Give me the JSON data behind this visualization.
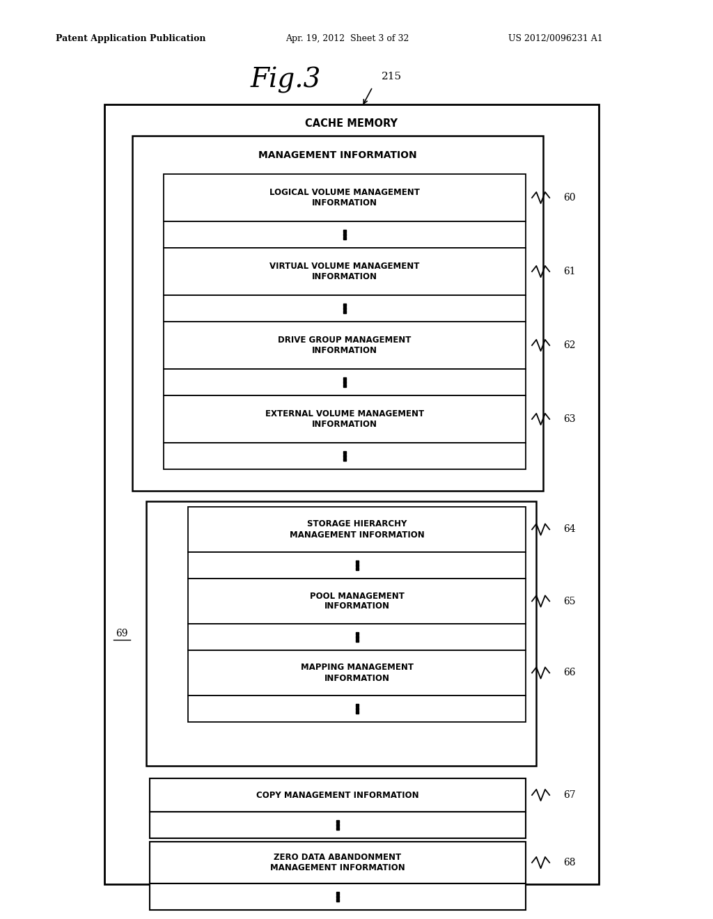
{
  "fig_width": 10.24,
  "fig_height": 13.2,
  "bg_color": "#ffffff",
  "header_left": "Patent Application Publication",
  "header_mid": "Apr. 19, 2012  Sheet 3 of 32",
  "header_right": "US 2012/0096231 A1",
  "fig_label": "Fig.3",
  "outer_box_label": "CACHE MEMORY",
  "outer_box_ref": "215",
  "inner_box_label": "MANAGEMENT INFORMATION",
  "sections": [
    {
      "label": "LOGICAL VOLUME MANAGEMENT\nINFORMATION",
      "ref": "60"
    },
    {
      "label": "VIRTUAL VOLUME MANAGEMENT\nINFORMATION",
      "ref": "61"
    },
    {
      "label": "DRIVE GROUP MANAGEMENT\nINFORMATION",
      "ref": "62"
    },
    {
      "label": "EXTERNAL VOLUME MANAGEMENT\nINFORMATION",
      "ref": "63"
    }
  ],
  "inner_box2_ref": "69",
  "sections2": [
    {
      "label": "STORAGE HIERARCHY\nMANAGEMENT INFORMATION",
      "ref": "64"
    },
    {
      "label": "POOL MANAGEMENT\nINFORMATION",
      "ref": "65"
    },
    {
      "label": "MAPPING MANAGEMENT\nINFORMATION",
      "ref": "66"
    }
  ],
  "sections3": [
    {
      "label": "COPY MANAGEMENT INFORMATION",
      "ref": "67"
    },
    {
      "label": "ZERO DATA ABANDONMENT\nMANAGEMENT INFORMATION",
      "ref": "68"
    }
  ]
}
